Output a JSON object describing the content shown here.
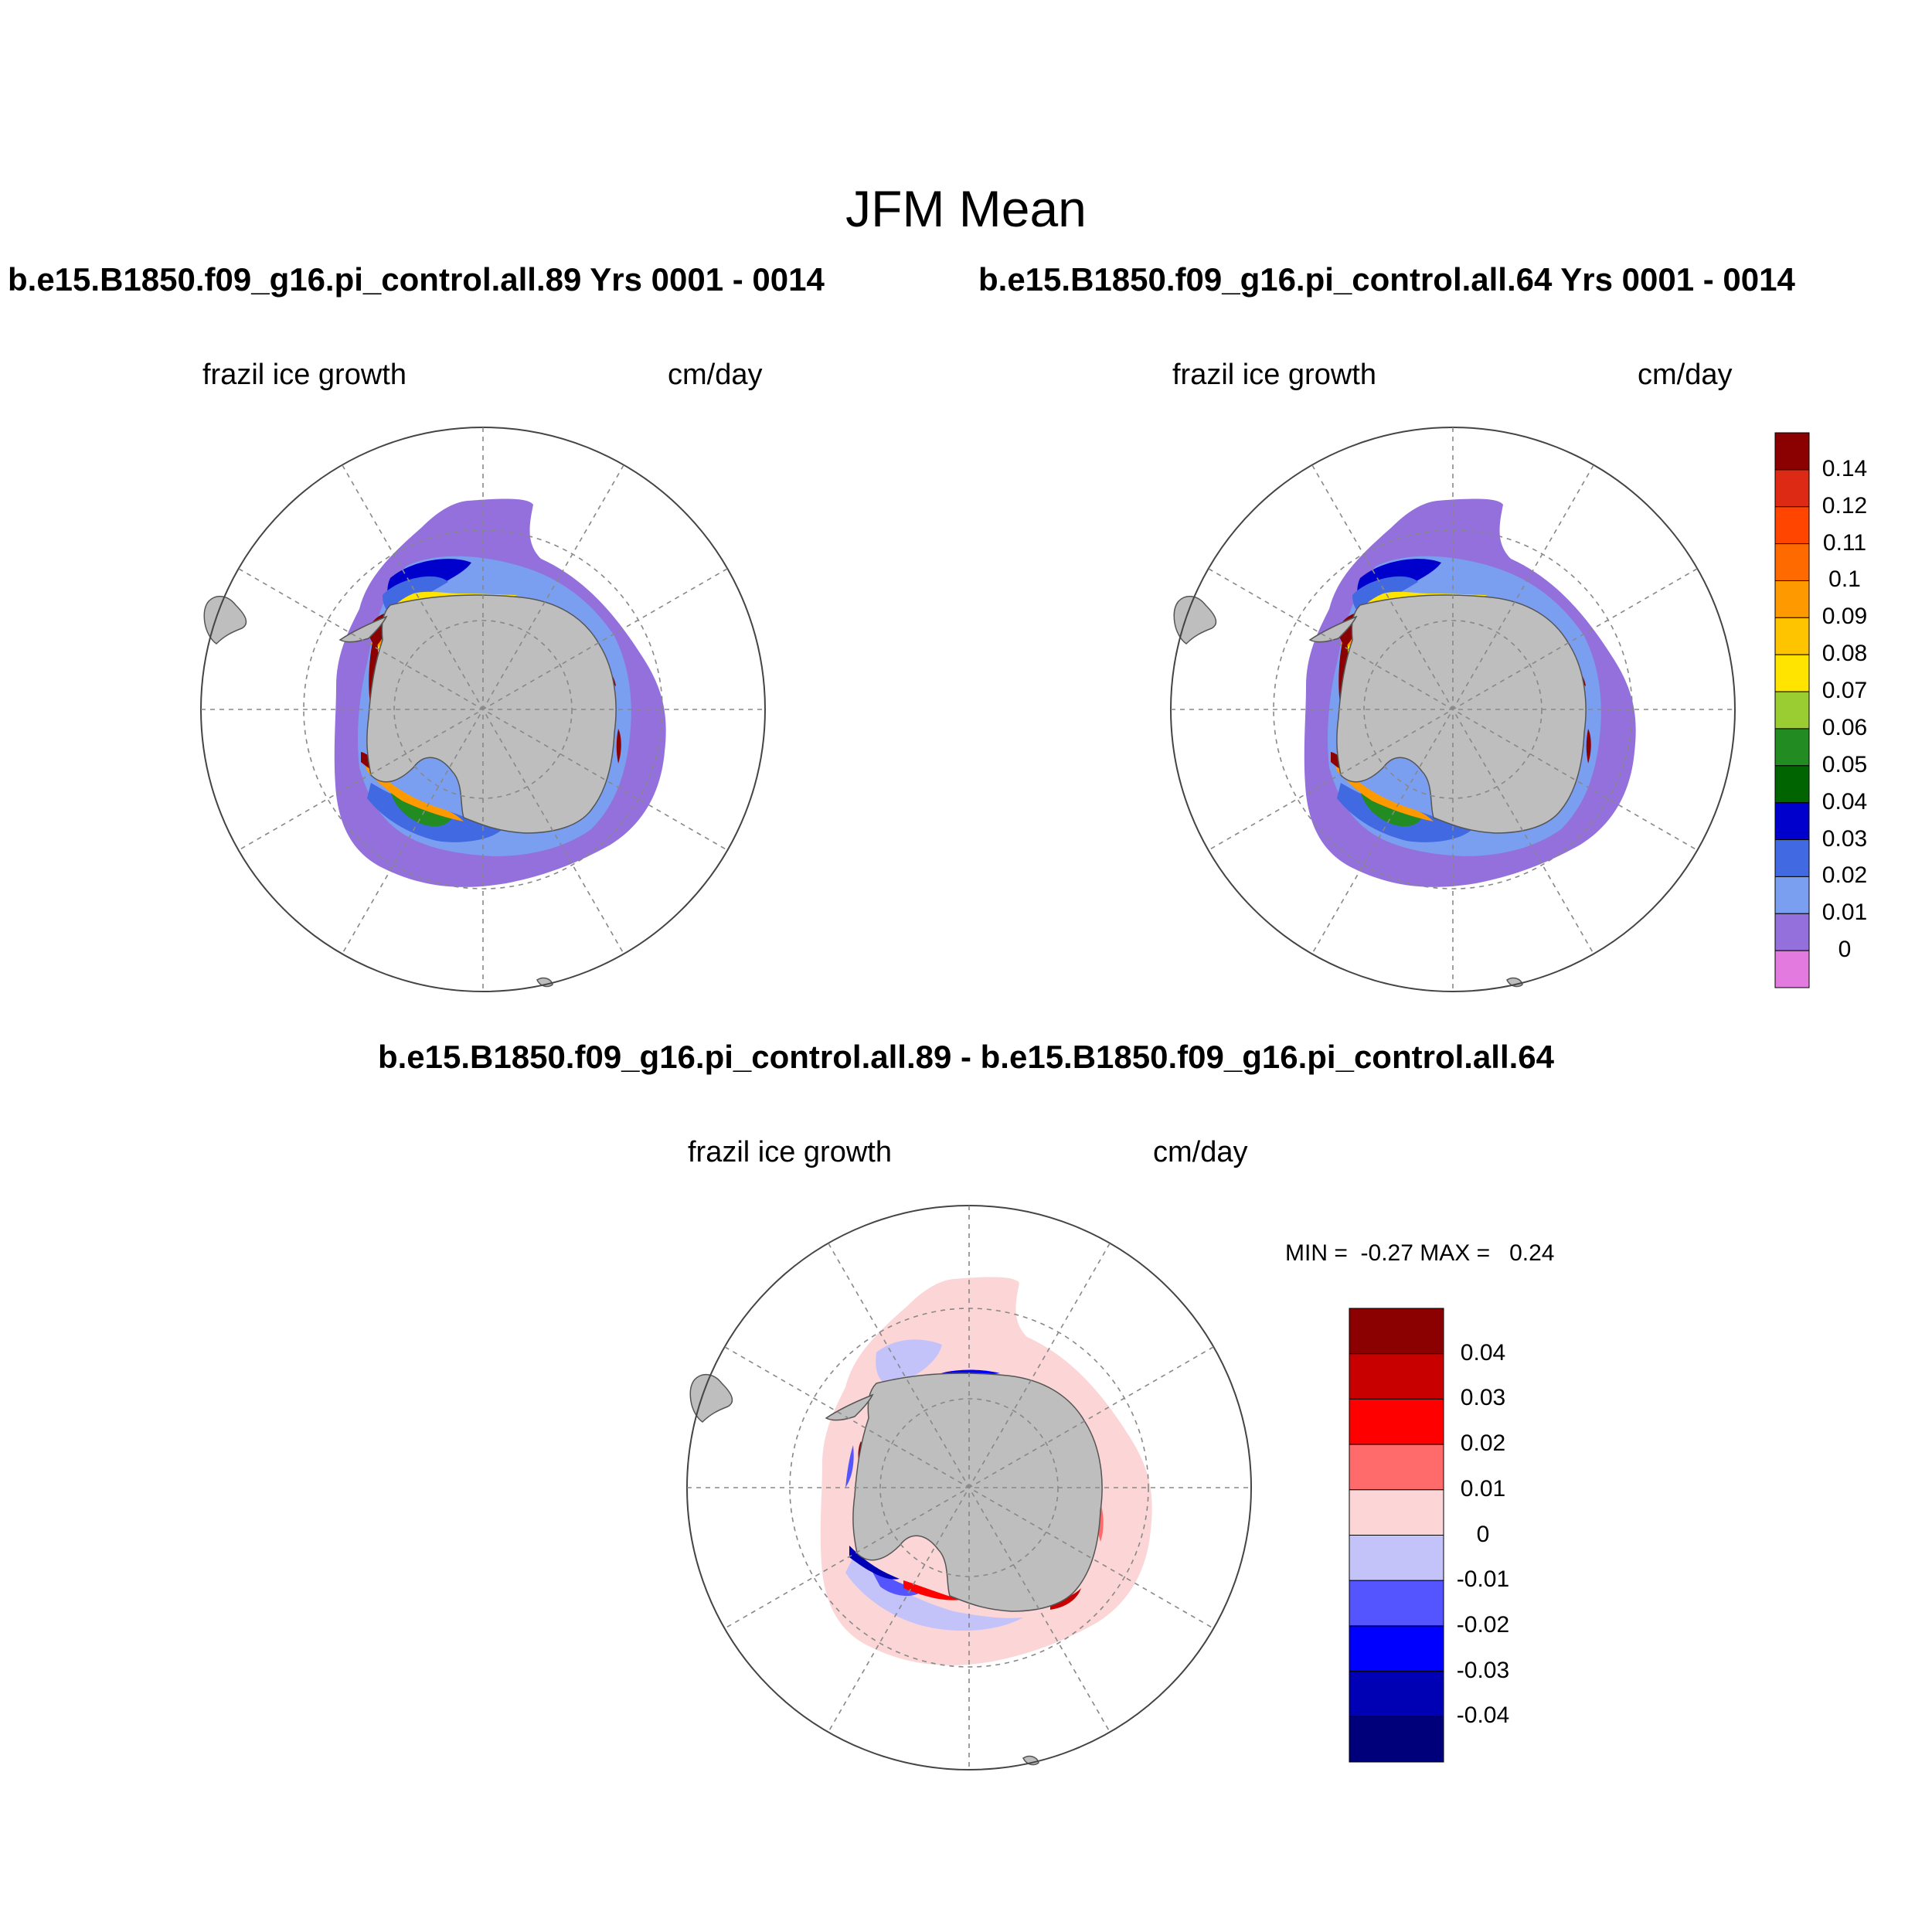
{
  "figure": {
    "title": "JFM Mean",
    "panels": [
      {
        "case": "b.e15.B1850.f09_g16.pi_control.all.89  Yrs 0001 - 0014",
        "left_label": "frazil ice growth",
        "right_label": "cm/day"
      },
      {
        "case": "b.e15.B1850.f09_g16.pi_control.all.64  Yrs 0001 - 0014",
        "left_label": "frazil ice growth",
        "right_label": "cm/day"
      },
      {
        "case": "b.e15.B1850.f09_g16.pi_control.all.89 - b.e15.B1850.f09_g16.pi_control.all.64",
        "left_label": "frazil ice growth",
        "right_label": "cm/day",
        "stats": "MIN =  -0.27 MAX =   0.24"
      }
    ]
  },
  "colorbars": {
    "mean": {
      "labels": [
        "0.14",
        "0.12",
        "0.11",
        "0.1",
        "0.09",
        "0.08",
        "0.07",
        "0.06",
        "0.05",
        "0.04",
        "0.03",
        "0.02",
        "0.01",
        "0"
      ],
      "colors": [
        "#8b0000",
        "#dc2a14",
        "#ff4500",
        "#ff6a00",
        "#ff9900",
        "#ffc400",
        "#ffe400",
        "#9acd32",
        "#228b22",
        "#006400",
        "#0000cd",
        "#4169e1",
        "#7b9ff0",
        "#9370db",
        "#e37ae0"
      ]
    },
    "diff": {
      "labels": [
        "0.04",
        "0.03",
        "0.02",
        "0.01",
        "0",
        "-0.01",
        "-0.02",
        "-0.03",
        "-0.04"
      ],
      "colors": [
        "#8b0000",
        "#c80000",
        "#ff0000",
        "#ff6b6b",
        "#fcd6d6",
        "#c3c3fa",
        "#5555ff",
        "#0000ff",
        "#0000b4",
        "#00007a"
      ]
    }
  },
  "map_colors": {
    "land": "#bebebe",
    "ice_zero": "#9370db",
    "ice_low": "#7b9ff0",
    "ice_mid": "#4169e1",
    "ice_deep": "#0000cd",
    "green": "#228b22",
    "yellow": "#ffe400",
    "orange": "#ff9900",
    "red": "#8b0000",
    "diff_pos_light": "#fcd6d6",
    "diff_neg_light": "#c3c3fa",
    "diff_neg": "#5555ff",
    "diff_neg_strong": "#0000ff",
    "diff_pos_strong": "#8b0000",
    "diff_pos": "#ff0000"
  }
}
